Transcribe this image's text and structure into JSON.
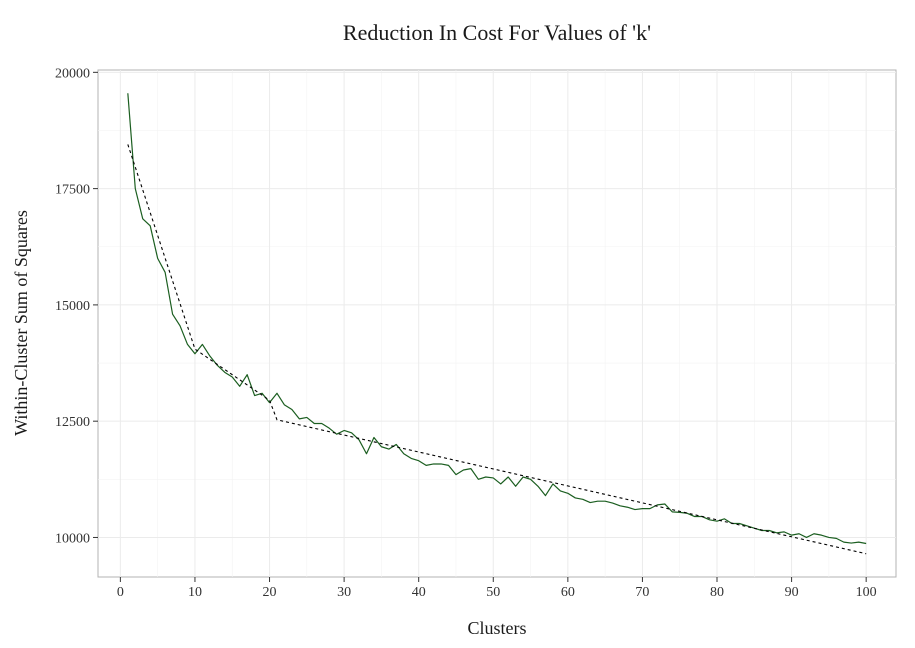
{
  "chart_data": {
    "type": "line",
    "title": "Reduction In Cost For Values of 'k'",
    "xlabel": "Clusters",
    "ylabel": "Within-Cluster Sum of Squares",
    "xlim": [
      -3,
      104
    ],
    "ylim": [
      9150,
      20050
    ],
    "x_ticks": [
      0,
      10,
      20,
      30,
      40,
      50,
      60,
      70,
      80,
      90,
      100
    ],
    "x_tick_labels": [
      "0",
      "10",
      "20",
      "30",
      "40",
      "50",
      "60",
      "70",
      "80",
      "90",
      "100"
    ],
    "y_ticks": [
      10000,
      12500,
      15000,
      17500,
      20000
    ],
    "y_tick_labels": [
      "10000",
      "12500",
      "15000",
      "17500",
      "20000"
    ],
    "grid": true,
    "legend": "none",
    "colors": {
      "wcss": "#1b5e20",
      "fit": "#000000",
      "grid": "#ebebeb",
      "border": "#b3b3b3"
    },
    "series": [
      {
        "style": "solid",
        "color": "#1b5e20",
        "x": [
          1,
          2,
          3,
          4,
          5,
          6,
          7,
          8,
          9,
          10,
          11,
          12,
          13,
          14,
          15,
          16,
          17,
          18,
          19,
          20,
          21,
          22,
          23,
          24,
          25,
          26,
          27,
          28,
          29,
          30,
          31,
          32,
          33,
          34,
          35,
          36,
          37,
          38,
          39,
          40,
          41,
          42,
          43,
          44,
          45,
          46,
          47,
          48,
          49,
          50,
          51,
          52,
          53,
          54,
          55,
          56,
          57,
          58,
          59,
          60,
          61,
          62,
          63,
          64,
          65,
          66,
          67,
          68,
          69,
          70,
          71,
          72,
          73,
          74,
          75,
          76,
          77,
          78,
          79,
          80,
          81,
          82,
          83,
          84,
          85,
          86,
          87,
          88,
          89,
          90,
          91,
          92,
          93,
          94,
          95,
          96,
          97,
          98,
          99,
          100
        ],
        "values": [
          19550,
          17500,
          16850,
          16700,
          16000,
          15700,
          14800,
          14550,
          14150,
          13950,
          14150,
          13900,
          13700,
          13550,
          13450,
          13250,
          13500,
          13050,
          13100,
          12900,
          13100,
          12850,
          12750,
          12550,
          12580,
          12450,
          12450,
          12350,
          12220,
          12300,
          12250,
          12100,
          11800,
          12150,
          11950,
          11900,
          12000,
          11800,
          11700,
          11650,
          11550,
          11580,
          11580,
          11550,
          11350,
          11450,
          11480,
          11250,
          11300,
          11280,
          11150,
          11300,
          11100,
          11300,
          11250,
          11100,
          10900,
          11150,
          11000,
          10950,
          10850,
          10820,
          10750,
          10780,
          10780,
          10740,
          10680,
          10650,
          10600,
          10620,
          10620,
          10700,
          10720,
          10550,
          10540,
          10520,
          10450,
          10450,
          10380,
          10350,
          10400,
          10300,
          10300,
          10250,
          10200,
          10150,
          10150,
          10100,
          10120,
          10050,
          10080,
          10000,
          10080,
          10050,
          10000,
          9980,
          9900,
          9880,
          9900,
          9870
        ]
      },
      {
        "style": "dashed",
        "color": "#000000",
        "x": [
          1,
          10,
          20,
          21,
          100
        ],
        "values": [
          18450,
          14050,
          12950,
          12530,
          9650
        ]
      }
    ]
  }
}
